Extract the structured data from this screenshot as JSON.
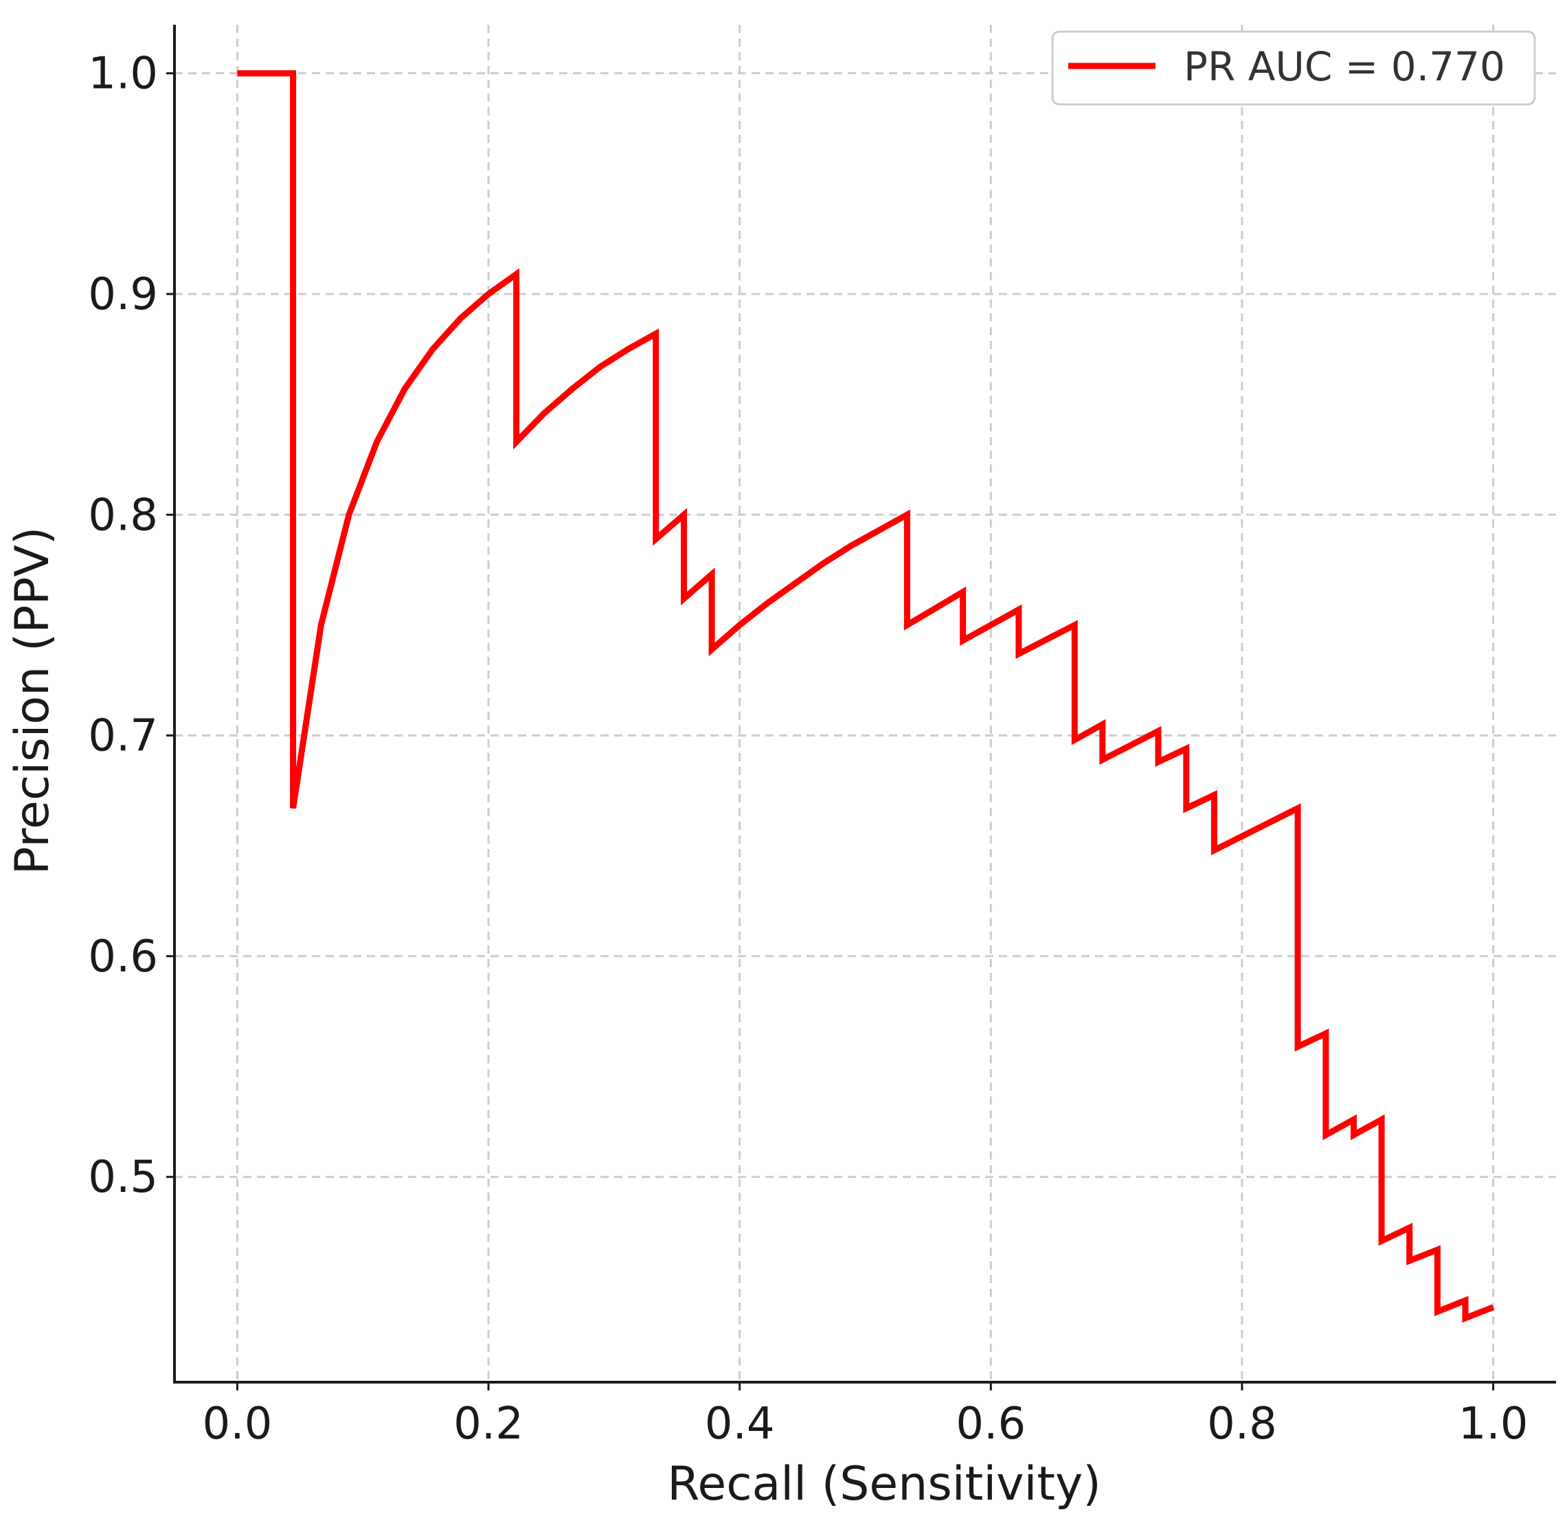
{
  "chart_data": {
    "type": "line",
    "xlabel": "Recall (Sensitivity)",
    "ylabel": "Precision (PPV)",
    "xlim": [
      -0.05,
      1.05
    ],
    "ylim": [
      0.407,
      1.022
    ],
    "xticks": [
      "0.0",
      "0.2",
      "0.4",
      "0.6",
      "0.8",
      "1.0"
    ],
    "yticks": [
      "0.5",
      "0.6",
      "0.7",
      "0.8",
      "0.9",
      "1.0"
    ],
    "grid": true,
    "legend_position": "top-right",
    "series": [
      {
        "name": "PR AUC = 0.770",
        "color": "#ff0000",
        "x": [
          0.0,
          0.0444,
          0.0444,
          0.0667,
          0.0889,
          0.1111,
          0.1333,
          0.1556,
          0.1778,
          0.2,
          0.2222,
          0.2222,
          0.2444,
          0.2667,
          0.2889,
          0.3111,
          0.3333,
          0.3333,
          0.3556,
          0.3556,
          0.3778,
          0.3778,
          0.4,
          0.4222,
          0.4444,
          0.4667,
          0.4889,
          0.5111,
          0.5333,
          0.5333,
          0.5778,
          0.5778,
          0.6222,
          0.6222,
          0.6667,
          0.6667,
          0.6889,
          0.6889,
          0.7333,
          0.7333,
          0.7556,
          0.7556,
          0.7778,
          0.7778,
          0.8444,
          0.8444,
          0.8667,
          0.8667,
          0.8889,
          0.8889,
          0.9111,
          0.9111,
          0.9333,
          0.9333,
          0.9556,
          0.9556,
          0.9778,
          0.9778,
          1.0
        ],
        "y": [
          1.0,
          1.0,
          0.667,
          0.75,
          0.8,
          0.833,
          0.857,
          0.875,
          0.889,
          0.9,
          0.909,
          0.833,
          0.846,
          0.857,
          0.867,
          0.875,
          0.882,
          0.789,
          0.8,
          0.762,
          0.773,
          0.739,
          0.75,
          0.76,
          0.769,
          0.778,
          0.786,
          0.793,
          0.8,
          0.75,
          0.765,
          0.743,
          0.757,
          0.737,
          0.75,
          0.698,
          0.705,
          0.689,
          0.702,
          0.688,
          0.694,
          0.667,
          0.673,
          0.648,
          0.667,
          0.559,
          0.565,
          0.519,
          0.526,
          0.519,
          0.526,
          0.471,
          0.477,
          0.462,
          0.467,
          0.439,
          0.444,
          0.436,
          0.441
        ]
      }
    ]
  }
}
